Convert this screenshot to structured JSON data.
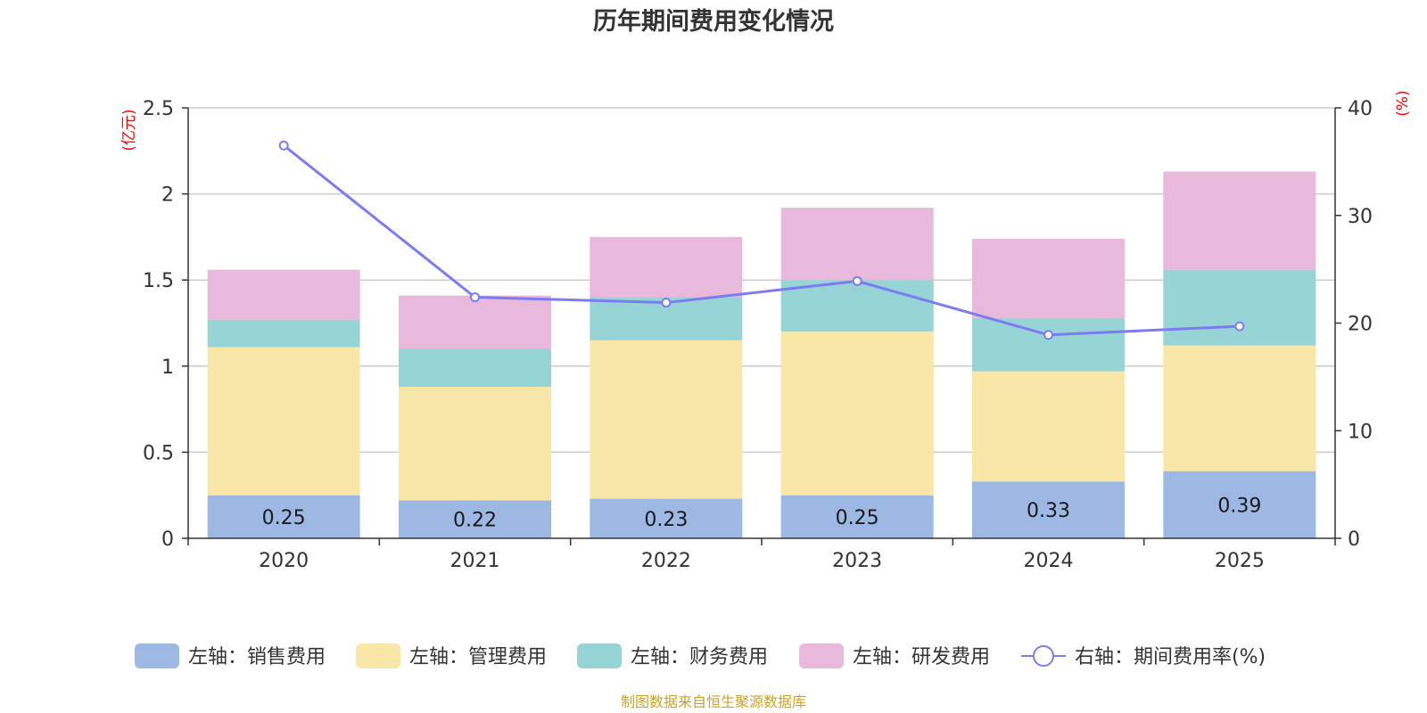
{
  "chart_data": {
    "type": "bar",
    "stacked": true,
    "title": "历年期间费用变化情况",
    "categories": [
      "2020",
      "2021",
      "2022",
      "2023",
      "2024",
      "2025"
    ],
    "left_axis": {
      "unit": "(亿元)",
      "min": 0,
      "max": 2.5,
      "ticks": [
        0,
        0.5,
        1,
        1.5,
        2,
        2.5
      ],
      "tick_labels": [
        "0",
        "0.5",
        "1",
        "1.5",
        "2",
        "2.5"
      ]
    },
    "right_axis": {
      "unit": "(%)",
      "min": 0,
      "max": 40,
      "ticks": [
        0,
        10,
        20,
        30,
        40
      ],
      "tick_labels": [
        "0",
        "10",
        "20",
        "30",
        "40"
      ]
    },
    "series": [
      {
        "name": "左轴：销售费用",
        "axis": "left",
        "color": "#9db8e2",
        "values": [
          0.25,
          0.22,
          0.23,
          0.25,
          0.33,
          0.39
        ],
        "labels": [
          "0.25",
          "0.22",
          "0.23",
          "0.25",
          "0.33",
          "0.39"
        ]
      },
      {
        "name": "左轴：管理费用",
        "axis": "left",
        "color": "#f8e7a7",
        "values": [
          0.86,
          0.66,
          0.92,
          0.95,
          0.64,
          0.73
        ]
      },
      {
        "name": "左轴：财务费用",
        "axis": "left",
        "color": "#97d4d5",
        "values": [
          0.16,
          0.22,
          0.25,
          0.3,
          0.31,
          0.44
        ]
      },
      {
        "name": "左轴：研发费用",
        "axis": "left",
        "color": "#e8b9da",
        "values": [
          0.29,
          0.31,
          0.35,
          0.42,
          0.46,
          0.57
        ]
      },
      {
        "name": "右轴：期间费用率(%)",
        "axis": "right",
        "type": "line",
        "color": "#7b7cf2",
        "values": [
          36.5,
          22.4,
          21.9,
          23.9,
          18.9,
          19.7
        ]
      }
    ],
    "grid": true,
    "legend_position": "bottom"
  },
  "source_note": "制图数据来自恒生聚源数据库"
}
